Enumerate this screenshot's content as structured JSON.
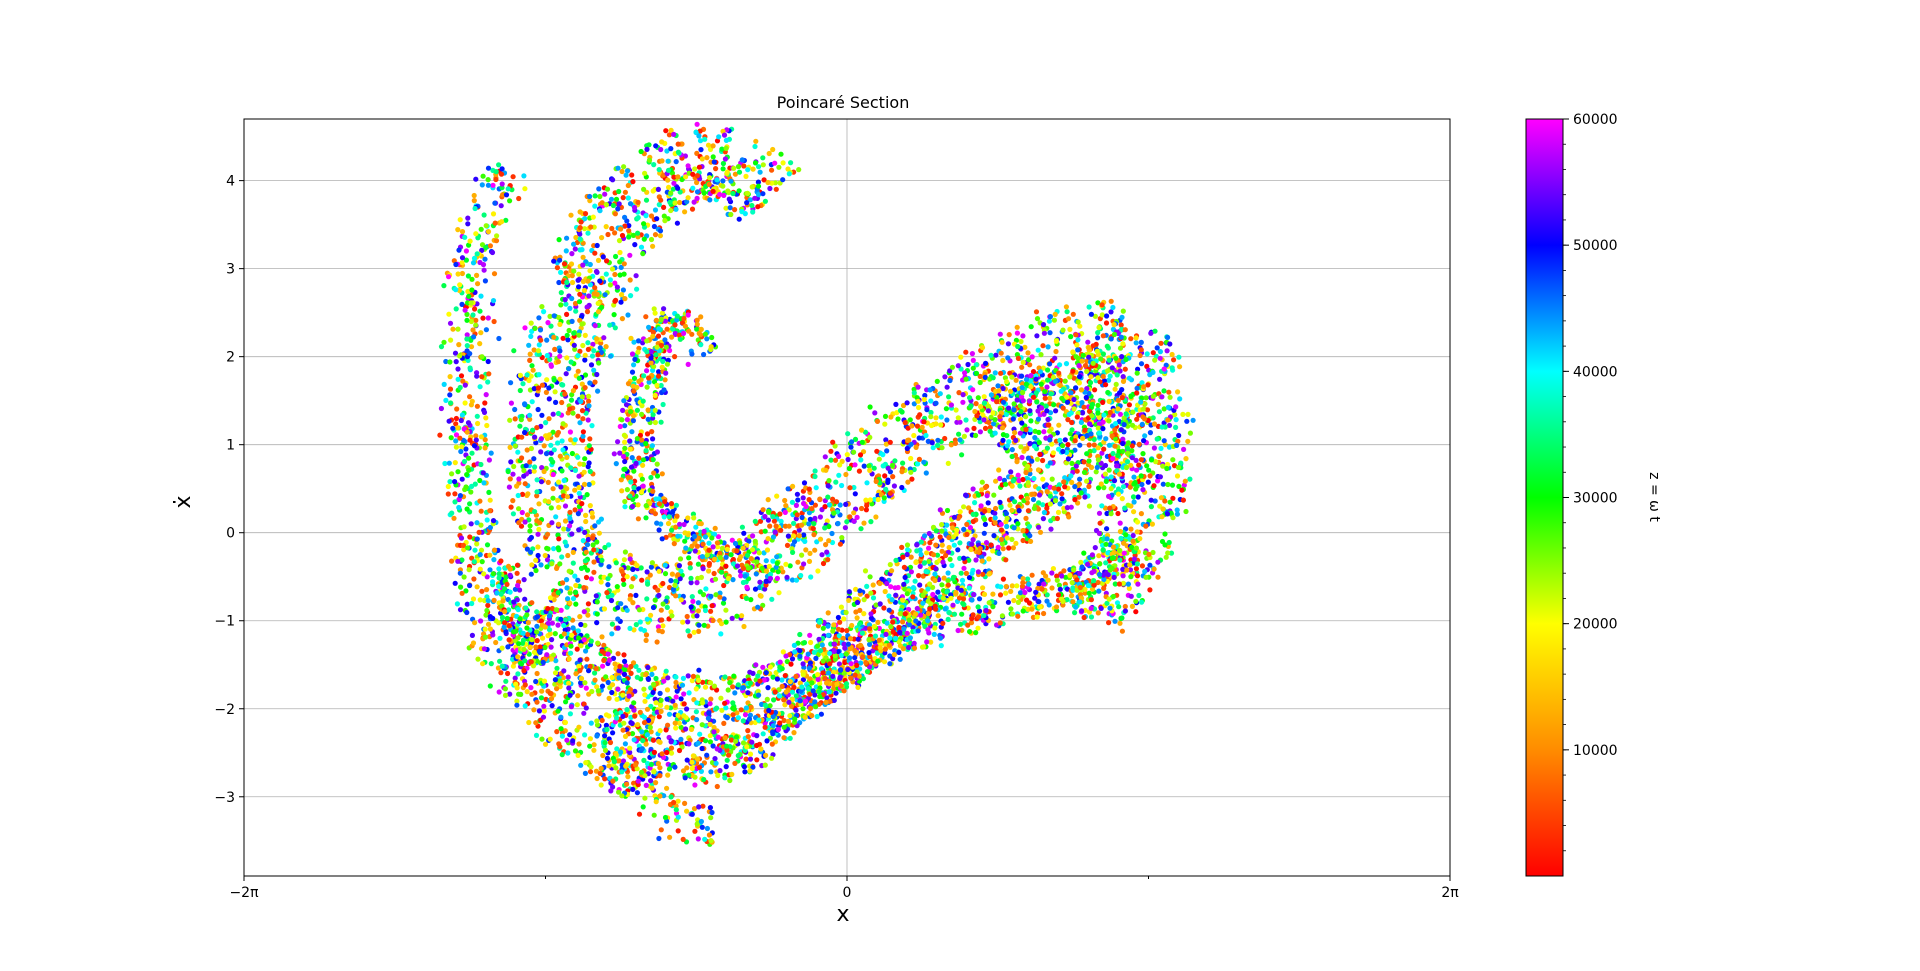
{
  "chart_data": {
    "type": "scatter",
    "title": "Poincaré Section",
    "xlabel": "x",
    "ylabel": "ẋ",
    "xlim": [
      -6.283185,
      6.283185
    ],
    "ylim": [
      -3.9,
      4.7
    ],
    "xticks": [
      {
        "value": -6.283185,
        "label": "−2π"
      },
      {
        "value": 0,
        "label": "0"
      },
      {
        "value": 6.283185,
        "label": "2π"
      }
    ],
    "xticks_minor": [
      -3.141593,
      3.141593
    ],
    "yticks": [
      {
        "value": -3,
        "label": "−3"
      },
      {
        "value": -2,
        "label": "−2"
      },
      {
        "value": -1,
        "label": "−1"
      },
      {
        "value": 0,
        "label": "0"
      },
      {
        "value": 1,
        "label": "1"
      },
      {
        "value": 2,
        "label": "2"
      },
      {
        "value": 3,
        "label": "3"
      },
      {
        "value": 4,
        "label": "4"
      }
    ],
    "grid": true,
    "colormap": "gist_rainbow",
    "colorbar": {
      "label": "z = ω t",
      "range": [
        0,
        60000
      ],
      "ticks": [
        {
          "value": 10000,
          "label": "10000"
        },
        {
          "value": 20000,
          "label": "20000"
        },
        {
          "value": 30000,
          "label": "30000"
        },
        {
          "value": 40000,
          "label": "40000"
        },
        {
          "value": 50000,
          "label": "50000"
        },
        {
          "value": 60000,
          "label": "60000"
        }
      ],
      "colors": [
        "#ff0000",
        "#ff8c00",
        "#ffff00",
        "#00ff00",
        "#00ffff",
        "#0000ff",
        "#ff00ff"
      ]
    },
    "bands": [
      {
        "desc": "outer left arc",
        "points": [
          [
            -3.5,
            4.15
          ],
          [
            -3.8,
            3.6
          ],
          [
            -3.9,
            3.0
          ],
          [
            -3.95,
            2.0
          ],
          [
            -3.95,
            1.0
          ],
          [
            -3.9,
            0.0
          ],
          [
            -3.8,
            -0.8
          ],
          [
            -3.6,
            -1.5
          ],
          [
            -3.1,
            -2.1
          ],
          [
            -2.6,
            -2.5
          ],
          [
            -2.2,
            -2.9
          ],
          [
            -1.9,
            -3.2
          ],
          [
            -1.6,
            -3.3
          ],
          [
            -1.4,
            -3.3
          ]
        ],
        "width": 0.22,
        "count": 750
      },
      {
        "desc": "upper arch",
        "points": [
          [
            -0.8,
            3.8
          ],
          [
            -1.2,
            4.2
          ],
          [
            -1.6,
            4.2
          ],
          [
            -2.0,
            4.0
          ],
          [
            -2.4,
            3.5
          ],
          [
            -2.8,
            2.5
          ],
          [
            -3.1,
            1.5
          ],
          [
            -3.1,
            0.5
          ],
          [
            -2.9,
            -0.4
          ],
          [
            -2.4,
            -0.7
          ],
          [
            -1.8,
            -0.8
          ],
          [
            -1.2,
            -0.6
          ],
          [
            -0.7,
            -0.2
          ],
          [
            -0.2,
            0.3
          ],
          [
            0.2,
            0.7
          ],
          [
            0.8,
            1.2
          ],
          [
            1.4,
            1.6
          ],
          [
            2.0,
            2.0
          ],
          [
            2.5,
            2.2
          ],
          [
            2.9,
            2.2
          ],
          [
            3.1,
            1.6
          ],
          [
            3.2,
            0.9
          ],
          [
            3.1,
            0.2
          ],
          [
            2.8,
            -0.5
          ],
          [
            2.5,
            -1.0
          ]
        ],
        "width": 0.42,
        "count": 2800
      },
      {
        "desc": "inner hook",
        "points": [
          [
            -1.5,
            2.0
          ],
          [
            -1.8,
            2.5
          ],
          [
            -2.0,
            2.2
          ],
          [
            -2.2,
            1.0
          ],
          [
            -2.1,
            0.3
          ],
          [
            -1.7,
            0.0
          ],
          [
            -1.2,
            -0.3
          ],
          [
            -0.7,
            -0.4
          ]
        ],
        "width": 0.18,
        "count": 550
      },
      {
        "desc": "lower arc",
        "points": [
          [
            -3.3,
            -0.8
          ],
          [
            -3.0,
            -1.4
          ],
          [
            -2.5,
            -1.8
          ],
          [
            -1.8,
            -2.0
          ],
          [
            -1.0,
            -2.0
          ],
          [
            -0.3,
            -1.6
          ],
          [
            0.2,
            -1.1
          ],
          [
            0.7,
            -0.6
          ],
          [
            1.2,
            -0.2
          ],
          [
            1.7,
            0.3
          ],
          [
            2.2,
            0.6
          ],
          [
            2.6,
            0.9
          ],
          [
            2.8,
            1.1
          ],
          [
            2.7,
            1.6
          ],
          [
            2.3,
            1.7
          ],
          [
            1.9,
            1.4
          ],
          [
            1.5,
            1.1
          ]
        ],
        "width": 0.38,
        "count": 2200
      },
      {
        "desc": "lower right arc",
        "points": [
          [
            -2.6,
            -2.4
          ],
          [
            -1.9,
            -2.6
          ],
          [
            -1.2,
            -2.6
          ],
          [
            -0.6,
            -2.0
          ],
          [
            0.0,
            -1.5
          ],
          [
            0.6,
            -1.1
          ],
          [
            1.3,
            -0.9
          ],
          [
            2.0,
            -0.7
          ],
          [
            2.6,
            -0.5
          ],
          [
            3.0,
            -0.1
          ]
        ],
        "width": 0.24,
        "count": 900
      },
      {
        "desc": "middle left arc",
        "points": [
          [
            -3.6,
            -0.4
          ],
          [
            -3.45,
            -1.0
          ],
          [
            -3.2,
            -1.5
          ]
        ],
        "width": 0.14,
        "count": 150
      }
    ]
  }
}
